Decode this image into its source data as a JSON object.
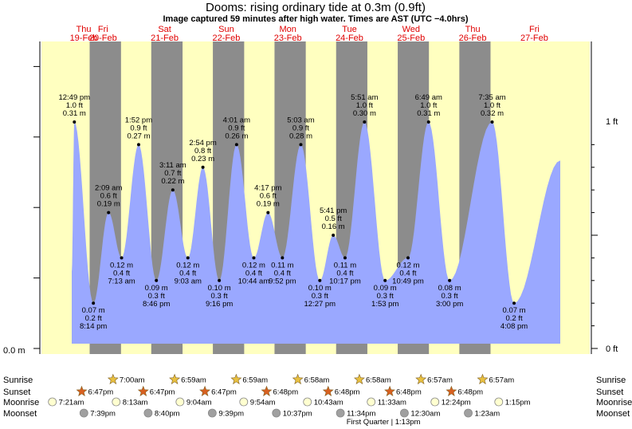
{
  "title": "Dooms: rising  ordinary tide at 0.3m (0.9ft)",
  "subtitle": "Image captured 59 minutes after high water. Times are AST (UTC −4.0hrs)",
  "colors": {
    "day_bg": "#ffffc0",
    "night_bg": "#8c8c8c",
    "tide_fill": "#9aa8ff",
    "day_label": "#e00000",
    "sun_star": "#e8c040",
    "sunset_star": "#d86020",
    "moon_rise": "#ffffd0",
    "moon_set": "#a0a0a0"
  },
  "chart_data": {
    "type": "area",
    "title": "Dooms: rising  ordinary tide at 0.3m (0.9ft)",
    "subtitle": "Image captured 59 minutes after high water. Times are AST (UTC −4.0hrs)",
    "ylim_ft": [
      0,
      1.25
    ],
    "left_axis": [
      "0.0 m"
    ],
    "right_axis": [
      "0 ft",
      "1 ft"
    ],
    "days": [
      {
        "dow": "Thu",
        "date": "19-Feb"
      },
      {
        "dow": "Fri",
        "date": "20-Feb"
      },
      {
        "dow": "Sat",
        "date": "21-Feb"
      },
      {
        "dow": "Sun",
        "date": "22-Feb"
      },
      {
        "dow": "Mon",
        "date": "23-Feb"
      },
      {
        "dow": "Tue",
        "date": "24-Feb"
      },
      {
        "dow": "Wed",
        "date": "25-Feb"
      },
      {
        "dow": "Thu",
        "date": "26-Feb"
      },
      {
        "dow": "Fri",
        "date": "27-Feb"
      }
    ],
    "extremes": [
      {
        "type": "high",
        "day": 0,
        "time": "12:49 pm",
        "ft": "1.0 ft",
        "m": "0.31 m",
        "h": 12.82,
        "v": 1.0
      },
      {
        "type": "low",
        "day": 0,
        "time": "8:14 pm",
        "ft": "0.2 ft",
        "m": "0.07 m",
        "h": 20.23,
        "v": 0.2
      },
      {
        "type": "high",
        "day": 1,
        "time": "2:09 am",
        "ft": "0.6 ft",
        "m": "0.19 m",
        "h": 2.15,
        "v": 0.6
      },
      {
        "type": "low",
        "day": 1,
        "time": "7:13 am",
        "ft": "0.4 ft",
        "m": "0.12 m",
        "h": 7.22,
        "v": 0.4
      },
      {
        "type": "high",
        "day": 1,
        "time": "1:52 pm",
        "ft": "0.9 ft",
        "m": "0.27 m",
        "h": 13.87,
        "v": 0.9
      },
      {
        "type": "low",
        "day": 1,
        "time": "8:46 pm",
        "ft": "0.3 ft",
        "m": "0.09 m",
        "h": 20.77,
        "v": 0.3
      },
      {
        "type": "high",
        "day": 2,
        "time": "3:11 am",
        "ft": "0.7 ft",
        "m": "0.22 m",
        "h": 3.18,
        "v": 0.7
      },
      {
        "type": "low",
        "day": 2,
        "time": "9:03 am",
        "ft": "0.4 ft",
        "m": "0.12 m",
        "h": 9.05,
        "v": 0.4
      },
      {
        "type": "high",
        "day": 2,
        "time": "2:54 pm",
        "ft": "0.8 ft",
        "m": "0.23 m",
        "h": 14.9,
        "v": 0.8
      },
      {
        "type": "low",
        "day": 2,
        "time": "9:16 pm",
        "ft": "0.3 ft",
        "m": "0.10 m",
        "h": 21.27,
        "v": 0.3
      },
      {
        "type": "high",
        "day": 3,
        "time": "4:01 am",
        "ft": "0.9 ft",
        "m": "0.26 m",
        "h": 4.02,
        "v": 0.9
      },
      {
        "type": "low",
        "day": 3,
        "time": "10:44 am",
        "ft": "0.4 ft",
        "m": "0.12 m",
        "h": 10.73,
        "v": 0.4
      },
      {
        "type": "high",
        "day": 3,
        "time": "4:17 pm",
        "ft": "0.6 ft",
        "m": "0.19 m",
        "h": 16.28,
        "v": 0.6
      },
      {
        "type": "low",
        "day": 3,
        "time": "9:52 pm",
        "ft": "0.4 ft",
        "m": "0.11 m",
        "h": 21.87,
        "v": 0.4
      },
      {
        "type": "high",
        "day": 4,
        "time": "5:03 am",
        "ft": "0.9 ft",
        "m": "0.28 m",
        "h": 5.05,
        "v": 0.9
      },
      {
        "type": "low",
        "day": 4,
        "time": "12:27 pm",
        "ft": "0.3 ft",
        "m": "0.10 m",
        "h": 12.45,
        "v": 0.3
      },
      {
        "type": "high",
        "day": 4,
        "time": "5:41 pm",
        "ft": "0.5 ft",
        "m": "0.16 m",
        "h": 17.68,
        "v": 0.5
      },
      {
        "type": "low",
        "day": 4,
        "time": "10:17 pm",
        "ft": "0.4 ft",
        "m": "0.11 m",
        "h": 22.28,
        "v": 0.4
      },
      {
        "type": "high",
        "day": 5,
        "time": "5:51 am",
        "ft": "1.0 ft",
        "m": "0.30 m",
        "h": 5.85,
        "v": 1.0
      },
      {
        "type": "low",
        "day": 5,
        "time": "1:53 pm",
        "ft": "0.3 ft",
        "m": "0.09 m",
        "h": 13.88,
        "v": 0.3
      },
      {
        "type": "low",
        "day": 5,
        "time": "10:49 pm",
        "ft": "0.4 ft",
        "m": "0.12 m",
        "h": 22.82,
        "v": 0.4
      },
      {
        "type": "high",
        "day": 6,
        "time": "6:49 am",
        "ft": "1.0 ft",
        "m": "0.31 m",
        "h": 6.82,
        "v": 1.0
      },
      {
        "type": "low",
        "day": 6,
        "time": "3:00 pm",
        "ft": "0.3 ft",
        "m": "0.08 m",
        "h": 15.0,
        "v": 0.3
      },
      {
        "type": "high",
        "day": 7,
        "time": "7:35 am",
        "ft": "1.0 ft",
        "m": "0.32 m",
        "h": 7.58,
        "v": 1.0
      },
      {
        "type": "low",
        "day": 7,
        "time": "4:08 pm",
        "ft": "0.2 ft",
        "m": "0.07 m",
        "h": 16.13,
        "v": 0.2
      }
    ],
    "rows": [
      {
        "label": "Sunrise",
        "kind": "sunrise",
        "events": [
          {
            "day": 1,
            "h": 7.0,
            "text": "7:00am"
          },
          {
            "day": 2,
            "h": 6.98,
            "text": "6:59am"
          },
          {
            "day": 3,
            "h": 6.98,
            "text": "6:59am"
          },
          {
            "day": 4,
            "h": 6.97,
            "text": "6:58am"
          },
          {
            "day": 5,
            "h": 6.97,
            "text": "6:58am"
          },
          {
            "day": 6,
            "h": 6.95,
            "text": "6:57am"
          },
          {
            "day": 7,
            "h": 6.95,
            "text": "6:57am"
          }
        ]
      },
      {
        "label": "Sunset",
        "kind": "sunset",
        "events": [
          {
            "day": 0,
            "h": 18.78,
            "text": "6:47pm"
          },
          {
            "day": 1,
            "h": 18.78,
            "text": "6:47pm"
          },
          {
            "day": 2,
            "h": 18.78,
            "text": "6:47pm"
          },
          {
            "day": 3,
            "h": 18.8,
            "text": "6:48pm"
          },
          {
            "day": 4,
            "h": 18.8,
            "text": "6:48pm"
          },
          {
            "day": 5,
            "h": 18.8,
            "text": "6:48pm"
          },
          {
            "day": 6,
            "h": 18.8,
            "text": "6:48pm"
          }
        ]
      },
      {
        "label": "Moonrise",
        "kind": "moonrise",
        "events": [
          {
            "day": 0,
            "h": 7.35,
            "text": "7:21am"
          },
          {
            "day": 1,
            "h": 8.22,
            "text": "8:13am"
          },
          {
            "day": 2,
            "h": 9.07,
            "text": "9:04am"
          },
          {
            "day": 3,
            "h": 9.9,
            "text": "9:54am"
          },
          {
            "day": 4,
            "h": 10.72,
            "text": "10:43am"
          },
          {
            "day": 5,
            "h": 11.55,
            "text": "11:33am"
          },
          {
            "day": 6,
            "h": 12.4,
            "text": "12:24pm"
          },
          {
            "day": 7,
            "h": 13.25,
            "text": "1:15pm"
          }
        ]
      },
      {
        "label": "Moonset",
        "kind": "moonset",
        "events": [
          {
            "day": 0,
            "h": 19.65,
            "text": "7:39pm"
          },
          {
            "day": 1,
            "h": 20.67,
            "text": "8:40pm"
          },
          {
            "day": 2,
            "h": 21.65,
            "text": "9:39pm"
          },
          {
            "day": 3,
            "h": 22.62,
            "text": "10:37pm"
          },
          {
            "day": 4,
            "h": 23.57,
            "text": "11:34pm"
          },
          {
            "day": 6,
            "h": 0.5,
            "text": "12:30am"
          },
          {
            "day": 7,
            "h": 1.38,
            "text": "1:23am"
          }
        ]
      }
    ],
    "moon_phase": {
      "text": "First Quarter | 1:13pm",
      "day": 5,
      "h": 13.22
    }
  }
}
